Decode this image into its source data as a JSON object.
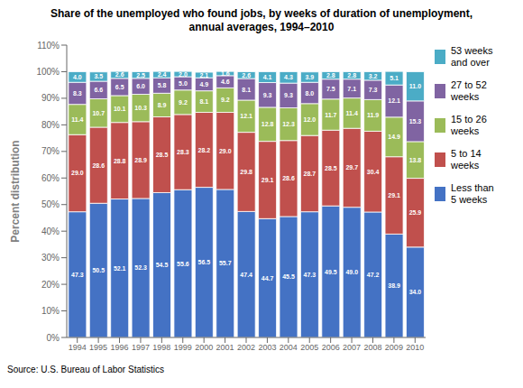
{
  "chart_data": {
    "type": "bar",
    "stacked": true,
    "title": "Share of the unemployed who found jobs, by weeks of duration of unemployment,\nannual averages, 1994–2010",
    "ylabel": "Percent distribution",
    "annotations": [
      "Source: U.S. Bureau of Labor Statistics"
    ],
    "categories": [
      "1994",
      "1995",
      "1996",
      "1997",
      "1998",
      "1999",
      "2000",
      "2001",
      "2002",
      "2003",
      "2004",
      "2005",
      "2006",
      "2007",
      "2008",
      "2009",
      "2010"
    ],
    "series": [
      {
        "name": "Less than\n5 weeks",
        "color": "#4472C4",
        "values": [
          47.3,
          50.5,
          52.1,
          52.3,
          54.5,
          55.6,
          56.5,
          55.7,
          47.4,
          44.7,
          45.5,
          47.3,
          49.5,
          49.0,
          47.2,
          38.9,
          34.0
        ],
        "value_labels": [
          "47.3",
          "50.5",
          "52.1",
          "52.3",
          "54.5",
          "55.6",
          "56.5",
          "55.7",
          "47.4",
          "44.7",
          "45.5",
          "47.3",
          "49.5",
          "49.0",
          "47.2",
          "38.9",
          "34.0"
        ]
      },
      {
        "name": "5 to 14\nweeks",
        "color": "#C0504D",
        "values": [
          29.0,
          28.6,
          28.8,
          28.9,
          28.5,
          28.3,
          28.2,
          29.0,
          29.8,
          29.1,
          28.6,
          28.7,
          28.5,
          29.7,
          30.4,
          29.1,
          25.9
        ],
        "value_labels": [
          "29.0",
          "28.6",
          "28.8",
          "28.9",
          "28.5",
          "28.3",
          "28.2",
          "29.0",
          "29.8",
          "29.1",
          "28.6",
          "28.7",
          "28.5",
          "29.7",
          "30.4",
          "29.1",
          "25.9"
        ]
      },
      {
        "name": "15 to 26\nweeks",
        "color": "#9BBB59",
        "values": [
          11.4,
          10.7,
          10.1,
          10.3,
          8.9,
          9.2,
          8.1,
          9.2,
          12.1,
          12.8,
          12.3,
          12.0,
          11.7,
          11.4,
          11.9,
          14.9,
          13.8
        ],
        "value_labels": [
          "11.4",
          "10.7",
          "10.1",
          "10.3",
          "8.9",
          "9.2",
          "8.1",
          "9.2",
          "12.1",
          "12.8",
          "12.3",
          "12.0",
          "11.7",
          "11.4",
          "11.9",
          "14.9",
          "13.8"
        ]
      },
      {
        "name": "27 to 52\nweeks",
        "color": "#8064A2",
        "values": [
          8.3,
          6.6,
          6.5,
          6.0,
          5.8,
          5.0,
          4.9,
          4.6,
          8.1,
          9.3,
          9.3,
          8.0,
          7.5,
          7.1,
          7.3,
          12.1,
          15.3
        ],
        "value_labels": [
          "8.3",
          "6.6",
          "6.5",
          "6.0",
          "5.8",
          "5.0",
          "4.9",
          "4.6",
          "8.1",
          "9.3",
          "9.3",
          "8.0",
          "7.5",
          "7.1",
          "7.3",
          "12.1",
          "15.3"
        ]
      },
      {
        "name": "53 weeks\nand over",
        "color": "#4BACC6",
        "values": [
          4.0,
          3.5,
          2.6,
          2.5,
          2.4,
          2.0,
          2.1,
          1.6,
          2.6,
          4.1,
          4.3,
          3.9,
          2.8,
          2.8,
          3.2,
          5.1,
          11.0
        ],
        "value_labels": [
          "4.0",
          "3.5",
          "2.6",
          "2.5",
          "2.4",
          "2.0",
          "2.1",
          "1.6",
          "2.6",
          "4.1",
          "4.3",
          "3.9",
          "2.8",
          "2.8",
          "3.2",
          "5.1",
          "11.0"
        ]
      }
    ],
    "ylim": [
      0,
      110
    ],
    "yticks": [
      {
        "value": 0,
        "label": "0%"
      },
      {
        "value": 10,
        "label": "10%"
      },
      {
        "value": 20,
        "label": "20%"
      },
      {
        "value": 30,
        "label": "30%"
      },
      {
        "value": 40,
        "label": "40%"
      },
      {
        "value": 50,
        "label": "50%"
      },
      {
        "value": 60,
        "label": "60%"
      },
      {
        "value": 70,
        "label": "70%"
      },
      {
        "value": 80,
        "label": "80%"
      },
      {
        "value": 90,
        "label": "90%"
      },
      {
        "value": 100,
        "label": "100%"
      },
      {
        "value": 110,
        "label": "110%"
      }
    ],
    "grid": false,
    "legend": "right",
    "data_labels": true
  }
}
